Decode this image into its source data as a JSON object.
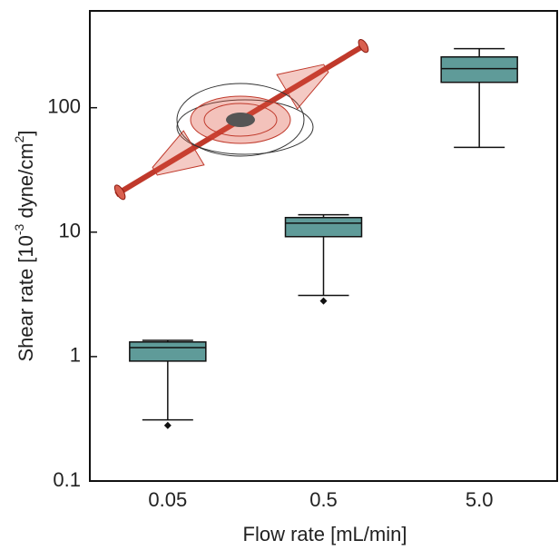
{
  "chart_data": {
    "type": "box",
    "xlabel": "Flow rate [mL/min]",
    "ylabel_parts": [
      "Shear rate [10",
      "-3",
      " dyne/cm",
      "2",
      "]"
    ],
    "categories": [
      "0.05",
      "0.5",
      "5.0"
    ],
    "color": "#5f9b99",
    "log_y": true,
    "ylim": [
      0.1,
      600
    ],
    "yticks": [
      0.1,
      1,
      10,
      100
    ],
    "boxes": [
      {
        "whislo": 0.31,
        "q1": 0.92,
        "med": 1.18,
        "q3": 1.31,
        "whishi": 1.35,
        "fliers": [
          0.28
        ]
      },
      {
        "whislo": 3.1,
        "q1": 9.2,
        "med": 11.8,
        "q3": 13.1,
        "whishi": 13.8,
        "fliers": [
          2.8
        ]
      },
      {
        "whislo": 48,
        "q1": 160,
        "med": 206,
        "q3": 256,
        "whishi": 298,
        "fliers": []
      }
    ]
  }
}
